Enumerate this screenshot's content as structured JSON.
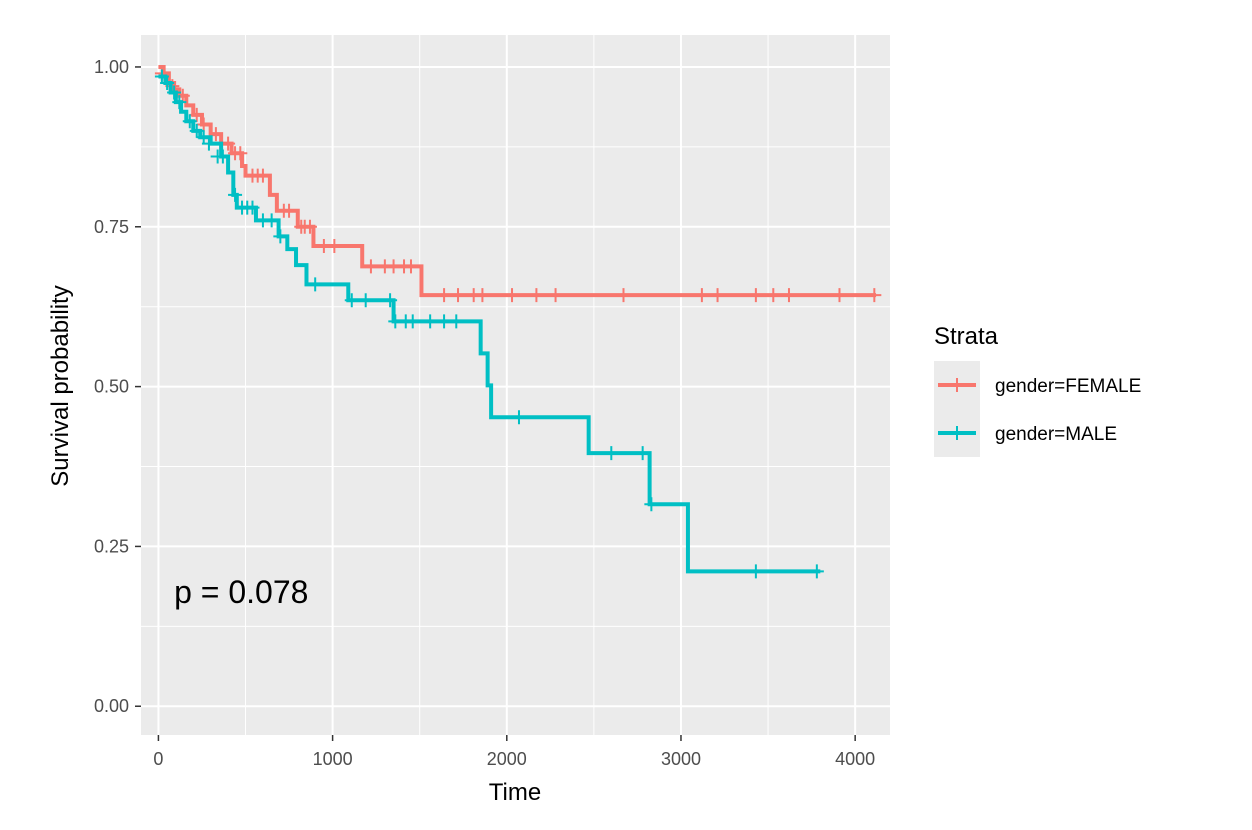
{
  "chart_data": {
    "type": "line",
    "subtype": "kaplan-meier-step",
    "title": "",
    "xlabel": "Time",
    "ylabel": "Survival probability",
    "xlim": [
      -100,
      4200
    ],
    "ylim": [
      -0.045,
      1.05
    ],
    "x_ticks": [
      0,
      1000,
      2000,
      3000,
      4000
    ],
    "x_tick_labels": [
      "0",
      "1000",
      "2000",
      "3000",
      "4000"
    ],
    "y_ticks": [
      0,
      0.25,
      0.5,
      0.75,
      1.0
    ],
    "y_tick_labels": [
      "0.00",
      "0.25",
      "0.50",
      "0.75",
      "1.00"
    ],
    "grid": true,
    "background": "#ebebeb",
    "legend": {
      "title": "Strata",
      "position": "right"
    },
    "annotation": {
      "text": "p = 0.078",
      "x": 90,
      "y": 0.18
    },
    "series": [
      {
        "name": "gender=FEMALE",
        "color": "#F8766D",
        "steps": [
          [
            0,
            1.0
          ],
          [
            30,
            0.99
          ],
          [
            60,
            0.975
          ],
          [
            90,
            0.965
          ],
          [
            120,
            0.955
          ],
          [
            160,
            0.94
          ],
          [
            200,
            0.925
          ],
          [
            250,
            0.91
          ],
          [
            300,
            0.895
          ],
          [
            360,
            0.88
          ],
          [
            420,
            0.865
          ],
          [
            480,
            0.845
          ],
          [
            500,
            0.83
          ],
          [
            560,
            0.83
          ],
          [
            640,
            0.8
          ],
          [
            680,
            0.775
          ],
          [
            800,
            0.75
          ],
          [
            890,
            0.72
          ],
          [
            1170,
            0.688
          ],
          [
            1510,
            0.643
          ],
          [
            4120,
            0.643
          ]
        ],
        "censored": [
          [
            20,
            0.99
          ],
          [
            80,
            0.97
          ],
          [
            140,
            0.955
          ],
          [
            220,
            0.925
          ],
          [
            260,
            0.91
          ],
          [
            330,
            0.895
          ],
          [
            400,
            0.88
          ],
          [
            440,
            0.865
          ],
          [
            470,
            0.865
          ],
          [
            540,
            0.83
          ],
          [
            570,
            0.83
          ],
          [
            600,
            0.83
          ],
          [
            720,
            0.775
          ],
          [
            750,
            0.775
          ],
          [
            820,
            0.75
          ],
          [
            840,
            0.75
          ],
          [
            870,
            0.75
          ],
          [
            950,
            0.72
          ],
          [
            1010,
            0.72
          ],
          [
            1220,
            0.688
          ],
          [
            1300,
            0.688
          ],
          [
            1350,
            0.688
          ],
          [
            1410,
            0.688
          ],
          [
            1450,
            0.688
          ],
          [
            1640,
            0.643
          ],
          [
            1720,
            0.643
          ],
          [
            1810,
            0.643
          ],
          [
            1860,
            0.643
          ],
          [
            2030,
            0.643
          ],
          [
            2170,
            0.643
          ],
          [
            2280,
            0.643
          ],
          [
            2670,
            0.643
          ],
          [
            3120,
            0.643
          ],
          [
            3210,
            0.643
          ],
          [
            3430,
            0.643
          ],
          [
            3530,
            0.643
          ],
          [
            3620,
            0.643
          ],
          [
            3910,
            0.643
          ],
          [
            4110,
            0.643
          ]
        ]
      },
      {
        "name": "gender=MALE",
        "color": "#00BFC4",
        "steps": [
          [
            0,
            0.985
          ],
          [
            40,
            0.975
          ],
          [
            70,
            0.96
          ],
          [
            100,
            0.945
          ],
          [
            130,
            0.93
          ],
          [
            160,
            0.915
          ],
          [
            200,
            0.9
          ],
          [
            240,
            0.89
          ],
          [
            300,
            0.88
          ],
          [
            360,
            0.86
          ],
          [
            400,
            0.835
          ],
          [
            430,
            0.8
          ],
          [
            450,
            0.78
          ],
          [
            560,
            0.76
          ],
          [
            690,
            0.735
          ],
          [
            740,
            0.715
          ],
          [
            790,
            0.69
          ],
          [
            850,
            0.66
          ],
          [
            1090,
            0.635
          ],
          [
            1350,
            0.602
          ],
          [
            1850,
            0.552
          ],
          [
            1890,
            0.502
          ],
          [
            1910,
            0.452
          ],
          [
            2470,
            0.396
          ],
          [
            2820,
            0.316
          ],
          [
            3040,
            0.211
          ],
          [
            3800,
            0.211
          ]
        ],
        "censored": [
          [
            20,
            0.985
          ],
          [
            50,
            0.975
          ],
          [
            90,
            0.96
          ],
          [
            120,
            0.945
          ],
          [
            180,
            0.915
          ],
          [
            220,
            0.9
          ],
          [
            260,
            0.89
          ],
          [
            290,
            0.88
          ],
          [
            340,
            0.86
          ],
          [
            370,
            0.86
          ],
          [
            440,
            0.8
          ],
          [
            480,
            0.78
          ],
          [
            510,
            0.78
          ],
          [
            540,
            0.78
          ],
          [
            600,
            0.76
          ],
          [
            650,
            0.76
          ],
          [
            700,
            0.735
          ],
          [
            900,
            0.66
          ],
          [
            1110,
            0.635
          ],
          [
            1190,
            0.635
          ],
          [
            1330,
            0.635
          ],
          [
            1360,
            0.602
          ],
          [
            1420,
            0.602
          ],
          [
            1460,
            0.602
          ],
          [
            1560,
            0.602
          ],
          [
            1640,
            0.602
          ],
          [
            1710,
            0.602
          ],
          [
            2070,
            0.452
          ],
          [
            2600,
            0.396
          ],
          [
            2780,
            0.396
          ],
          [
            2830,
            0.316
          ],
          [
            3430,
            0.211
          ],
          [
            3780,
            0.211
          ]
        ]
      }
    ]
  }
}
